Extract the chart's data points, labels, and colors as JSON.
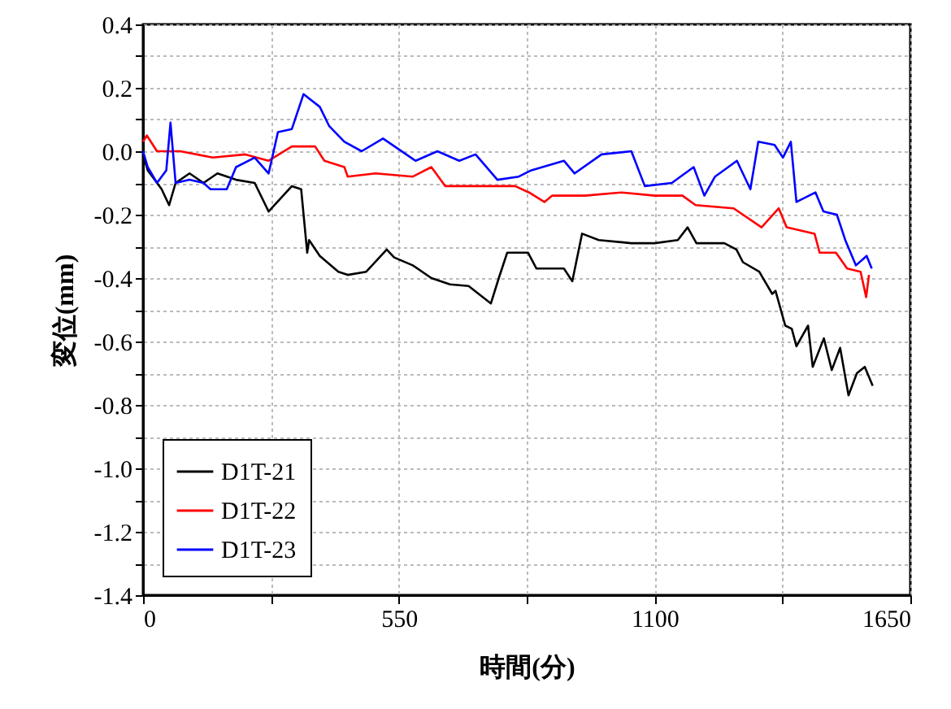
{
  "chart_data": {
    "type": "line",
    "xlabel": "時間(分)",
    "ylabel": "変位(mm)",
    "xlim": [
      0,
      1650
    ],
    "xticks": [
      0,
      {
        "value": 275,
        "label": null
      },
      550,
      {
        "value": 825,
        "label": null
      },
      1100,
      {
        "value": 1375,
        "label": null
      },
      1650
    ],
    "ylim": [
      -1.4,
      0.4
    ],
    "yticks": [
      0.4,
      {
        "value": 0.3,
        "label": null
      },
      0.2,
      {
        "value": 0.1,
        "label": null
      },
      {
        "value": 0,
        "label": "0.0"
      },
      {
        "value": -0.1,
        "label": null
      },
      -0.2,
      {
        "value": -0.3,
        "label": null
      },
      -0.4,
      {
        "value": -0.5,
        "label": null
      },
      -0.6,
      {
        "value": -0.7,
        "label": null
      },
      -0.8,
      {
        "value": -0.9,
        "label": null
      },
      {
        "value": -1.0,
        "label": "-1.0"
      },
      {
        "value": -1.1,
        "label": null
      },
      -1.2,
      {
        "value": -1.3,
        "label": null
      },
      -1.4
    ],
    "grid": true,
    "legend": "bottom left",
    "line_style": "solid",
    "marker": "none",
    "series": [
      {
        "name": "D1T-21",
        "color": "#000000",
        "x": [
          0,
          10,
          25,
          40,
          56,
          70,
          100,
          130,
          160,
          200,
          240,
          270,
          320,
          340,
          353,
          357,
          380,
          420,
          440,
          480,
          524,
          540,
          580,
          620,
          660,
          700,
          748,
          765,
          783,
          828,
          846,
          880,
          905,
          923,
          944,
          980,
          1050,
          1100,
          1150,
          1171,
          1190,
          1250,
          1276,
          1290,
          1325,
          1353,
          1360,
          1381,
          1395,
          1405,
          1430,
          1440,
          1464,
          1481,
          1499,
          1517,
          1535,
          1552,
          1569
        ],
        "values": [
          -0.01,
          -0.06,
          -0.09,
          -0.12,
          -0.17,
          -0.1,
          -0.07,
          -0.1,
          -0.07,
          -0.09,
          -0.1,
          -0.19,
          -0.11,
          -0.12,
          -0.32,
          -0.28,
          -0.33,
          -0.38,
          -0.39,
          -0.38,
          -0.31,
          -0.335,
          -0.36,
          -0.4,
          -0.42,
          -0.425,
          -0.48,
          -0.4,
          -0.32,
          -0.32,
          -0.37,
          -0.37,
          -0.37,
          -0.41,
          -0.26,
          -0.28,
          -0.29,
          -0.29,
          -0.28,
          -0.24,
          -0.29,
          -0.29,
          -0.31,
          -0.35,
          -0.38,
          -0.45,
          -0.44,
          -0.55,
          -0.56,
          -0.615,
          -0.55,
          -0.68,
          -0.59,
          -0.69,
          -0.62,
          -0.77,
          -0.7,
          -0.68,
          -0.74
        ]
      },
      {
        "name": "D1T-22",
        "color": "#ff0000",
        "x": [
          0,
          8,
          30,
          80,
          150,
          220,
          270,
          320,
          370,
          390,
          433,
          440,
          500,
          580,
          620,
          650,
          720,
          800,
          830,
          863,
          880,
          950,
          1030,
          1100,
          1160,
          1188,
          1270,
          1330,
          1367,
          1384,
          1444,
          1455,
          1490,
          1514,
          1543,
          1555,
          1561
        ],
        "values": [
          0.03,
          0.05,
          0.0,
          0.0,
          -0.02,
          -0.01,
          -0.03,
          0.015,
          0.015,
          -0.03,
          -0.05,
          -0.08,
          -0.07,
          -0.08,
          -0.05,
          -0.11,
          -0.11,
          -0.11,
          -0.13,
          -0.16,
          -0.14,
          -0.14,
          -0.13,
          -0.14,
          -0.14,
          -0.17,
          -0.18,
          -0.24,
          -0.18,
          -0.24,
          -0.26,
          -0.32,
          -0.32,
          -0.37,
          -0.38,
          -0.46,
          -0.39
        ]
      },
      {
        "name": "D1T-23",
        "color": "#0000ff",
        "x": [
          0,
          10,
          30,
          50,
          59,
          70,
          100,
          130,
          145,
          180,
          200,
          240,
          270,
          290,
          320,
          345,
          380,
          400,
          433,
          470,
          516,
          586,
          633,
          680,
          715,
          762,
          808,
          835,
          905,
          928,
          986,
          1050,
          1079,
          1137,
          1184,
          1207,
          1230,
          1277,
          1306,
          1323,
          1358,
          1376,
          1393,
          1405,
          1446,
          1463,
          1492,
          1510,
          1533,
          1556,
          1567
        ],
        "values": [
          0.0,
          -0.05,
          -0.1,
          -0.06,
          0.09,
          -0.1,
          -0.09,
          -0.1,
          -0.12,
          -0.12,
          -0.05,
          -0.02,
          -0.07,
          0.06,
          0.07,
          0.18,
          0.14,
          0.08,
          0.03,
          0.0,
          0.04,
          -0.03,
          0.0,
          -0.03,
          -0.01,
          -0.09,
          -0.08,
          -0.06,
          -0.03,
          -0.07,
          -0.01,
          0.0,
          -0.11,
          -0.1,
          -0.05,
          -0.14,
          -0.08,
          -0.03,
          -0.12,
          0.03,
          0.02,
          -0.02,
          0.03,
          -0.16,
          -0.13,
          -0.19,
          -0.2,
          -0.28,
          -0.36,
          -0.33,
          -0.37
        ]
      }
    ]
  }
}
